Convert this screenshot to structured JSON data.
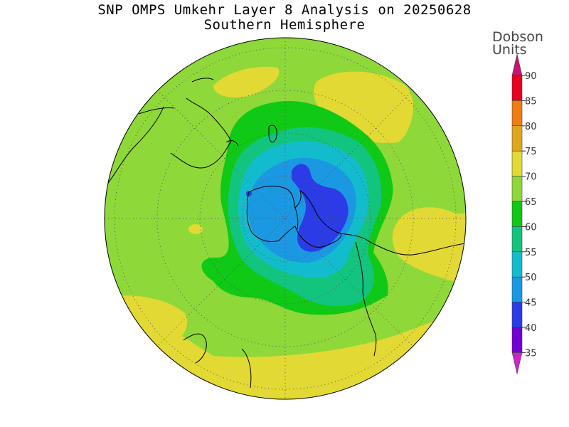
{
  "title": "SNP OMPS Umkehr Layer 8 Analysis on 20250628",
  "subtitle": "Southern Hemisphere",
  "colorbar": {
    "title_line1": "Dobson",
    "title_line2": "Units",
    "ticks": [
      "90",
      "85",
      "80",
      "75",
      "70",
      "65",
      "60",
      "55",
      "50",
      "45",
      "40",
      "35"
    ],
    "bins": [
      {
        "range": "85-90",
        "color": "#e8001e"
      },
      {
        "range": "80-85",
        "color": "#ef7d12"
      },
      {
        "range": "75-80",
        "color": "#e0a71c"
      },
      {
        "range": "70-75",
        "color": "#e3d934"
      },
      {
        "range": "65-70",
        "color": "#8fd83a"
      },
      {
        "range": "60-65",
        "color": "#10c816"
      },
      {
        "range": "55-60",
        "color": "#13c47e"
      },
      {
        "range": "50-55",
        "color": "#13bccc"
      },
      {
        "range": "45-50",
        "color": "#1b98e2"
      },
      {
        "range": "40-45",
        "color": "#2b3ce6"
      },
      {
        "range": "35-40",
        "color": "#7100d2"
      }
    ],
    "over_color": "#c8146e",
    "under_color": "#c828c8"
  },
  "map": {
    "projection": "polar-stereographic",
    "hemisphere": "south",
    "background_color": "#8fd83a",
    "graticule": "dotted",
    "ozone_minimum_dobson_range": "40-45"
  }
}
